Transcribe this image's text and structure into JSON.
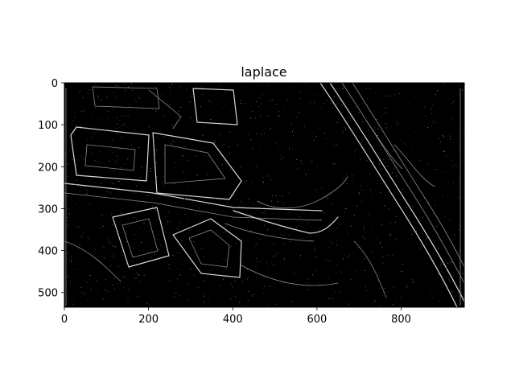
{
  "chart_data": {
    "type": "heatmap",
    "title": "laplace",
    "xlabel": "",
    "ylabel": "",
    "colormap": "gray",
    "image_width": 950,
    "image_height": 535,
    "xlim": [
      0,
      950
    ],
    "ylim": [
      535,
      0
    ],
    "x_ticks": [
      0,
      200,
      400,
      600,
      800
    ],
    "y_ticks": [
      0,
      100,
      200,
      300,
      400,
      500
    ],
    "x_tick_labels": [
      "0",
      "200",
      "400",
      "600",
      "800"
    ],
    "y_tick_labels": [
      "0",
      "100",
      "200",
      "300",
      "400",
      "500"
    ],
    "grid": false,
    "legend": "none"
  },
  "colors": {
    "background": "#ffffff",
    "image_background": "#000000",
    "edge_bright": "#d8d8d8",
    "edge_faint": "#8c8c8c",
    "text": "#000000"
  }
}
